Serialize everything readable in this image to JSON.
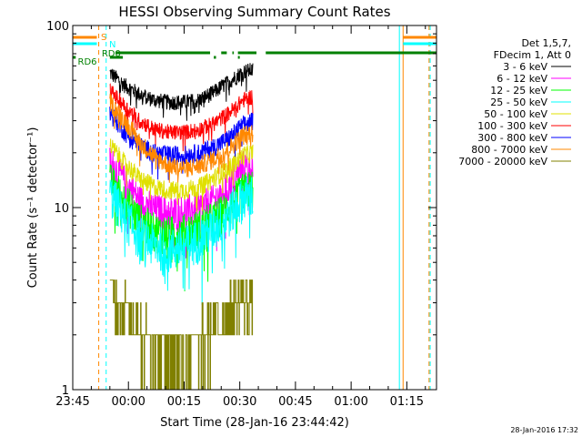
{
  "chart_data": {
    "type": "line",
    "title": "HESSI Observing Summary Count Rates",
    "xlabel": "Start Time (28-Jan-16 23:44:42)",
    "ylabel": "Count Rate (s⁻¹ detector⁻¹)",
    "y_scale": "log",
    "ylim": [
      1,
      100
    ],
    "xlim_minutes_after_2345": [
      0,
      98
    ],
    "x_ticks": [
      "23:45",
      "00:00",
      "00:15",
      "00:30",
      "00:45",
      "01:00",
      "01:15"
    ],
    "y_ticks": [
      "1",
      "10",
      "100"
    ],
    "grid": false,
    "legend_position": "right",
    "legend_header": [
      "Det 1,5,7,",
      "FDecim 1, Att 0"
    ],
    "date_stamp": "28-Jan-2016 17:32",
    "data_window_minutes": [
      10,
      48.5
    ],
    "series": [
      {
        "name": "3 - 6 keV",
        "color": "#000000",
        "x": [
          10,
          14,
          18,
          22,
          26,
          30,
          34,
          38,
          42,
          46,
          48.5
        ],
        "y": [
          55,
          47,
          42,
          39,
          38,
          38,
          39,
          43,
          49,
          56,
          57
        ]
      },
      {
        "name": "6 - 12 keV",
        "color": "#ff00ff",
        "x": [
          10,
          14,
          18,
          22,
          26,
          30,
          34,
          38,
          42,
          46,
          48.5
        ],
        "y": [
          18,
          14,
          11,
          9.8,
          9.5,
          9.6,
          10,
          11,
          13,
          17,
          17
        ]
      },
      {
        "name": "12 - 25 keV",
        "color": "#00ff00",
        "x": [
          10,
          14,
          18,
          22,
          26,
          30,
          34,
          38,
          42,
          46,
          48.5
        ],
        "y": [
          14,
          11,
          8.5,
          7.5,
          7.2,
          7.4,
          7.8,
          8.7,
          10,
          12.5,
          13
        ]
      },
      {
        "name": "25 - 50 keV",
        "color": "#00ffff",
        "x": [
          10,
          14,
          18,
          22,
          26,
          30,
          34,
          38,
          42,
          46,
          48.5
        ],
        "y": [
          12,
          9,
          7,
          6.3,
          6.0,
          6.2,
          6.8,
          7.8,
          9.3,
          11.5,
          12
        ]
      },
      {
        "name": "50 - 100 keV",
        "color": "#e0e000",
        "x": [
          10,
          14,
          18,
          22,
          26,
          30,
          34,
          38,
          42,
          46,
          48.5
        ],
        "y": [
          22,
          17.5,
          14.5,
          13,
          12.5,
          12.5,
          13,
          14.5,
          16.5,
          19.5,
          20
        ]
      },
      {
        "name": "100 - 300 keV",
        "color": "#ff0000",
        "x": [
          10,
          14,
          18,
          22,
          26,
          30,
          34,
          38,
          42,
          46,
          48.5
        ],
        "y": [
          44,
          36,
          30,
          27,
          26,
          26,
          27,
          29,
          33,
          39,
          41
        ]
      },
      {
        "name": "300 - 800 keV",
        "color": "#0000ff",
        "x": [
          10,
          14,
          18,
          22,
          26,
          30,
          34,
          38,
          42,
          46,
          48.5
        ],
        "y": [
          33,
          26,
          22,
          20,
          19.5,
          19.5,
          20,
          21.5,
          24,
          28.5,
          30
        ]
      },
      {
        "name": "800 - 7000 keV",
        "color": "#ff8800",
        "x": [
          10,
          14,
          18,
          22,
          26,
          30,
          34,
          38,
          42,
          46,
          48.5
        ],
        "y": [
          38,
          30,
          23,
          19,
          17,
          16.5,
          17,
          18.5,
          21,
          25,
          26
        ]
      },
      {
        "name": "7000 - 20000 keV",
        "color": "#808000",
        "x": [
          10,
          14,
          18,
          22,
          26,
          30,
          34,
          38,
          42,
          46,
          48.5
        ],
        "y": [
          3.5,
          2.5,
          1.9,
          1.6,
          1.5,
          1.5,
          1.7,
          2.0,
          2.4,
          3.0,
          3.0
        ]
      }
    ],
    "state_bars": [
      {
        "label": "S",
        "color": "#ff8800",
        "segments": [
          [
            0,
            6.5
          ],
          [
            89,
            98
          ]
        ]
      },
      {
        "label": "N",
        "color": "#00ffff",
        "segments": [
          [
            0,
            6.5
          ],
          [
            89,
            98
          ]
        ]
      },
      {
        "label": "RD0",
        "color": "#008000",
        "segments": [
          [
            11.5,
            37
          ],
          [
            40,
            41.5
          ],
          [
            43,
            43.4
          ],
          [
            44.5,
            49.5
          ],
          [
            52,
            98
          ]
        ]
      },
      {
        "label": "RD6",
        "color": "#008000",
        "segments": [
          [
            0,
            0.8
          ],
          [
            10,
            13.5
          ],
          [
            38,
            38.6
          ],
          [
            44.5,
            45
          ]
        ]
      }
    ],
    "vertical_lines": [
      {
        "x": 7,
        "color": "#ff8800",
        "style": "dashed"
      },
      {
        "x": 9,
        "color": "#00ffff",
        "style": "dashed"
      },
      {
        "x": 88,
        "color": "#00ffff",
        "style": "solid"
      },
      {
        "x": 89,
        "color": "#ff8800",
        "style": "solid"
      },
      {
        "x": 96,
        "color": "#ff8800",
        "style": "dashed"
      },
      {
        "x": 96.3,
        "color": "#00ffff",
        "style": "dashed"
      }
    ]
  }
}
